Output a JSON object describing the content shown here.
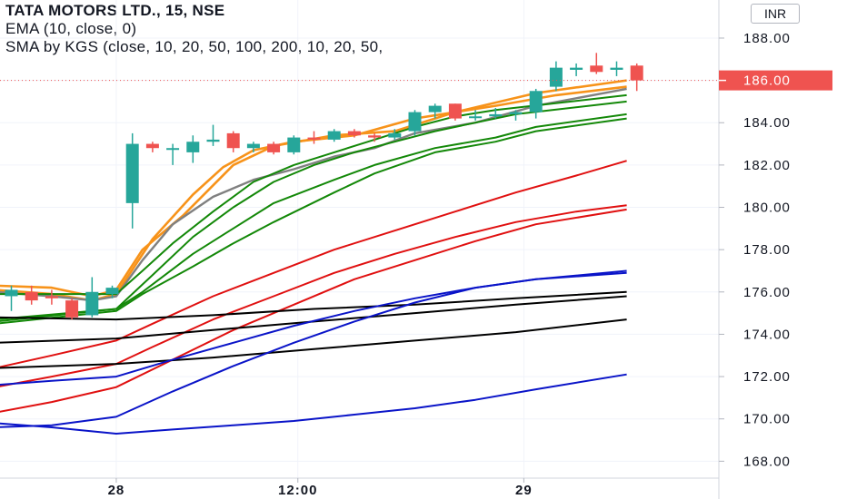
{
  "legend": {
    "title": "TATA MOTORS LTD., 15, NSE",
    "ema": "EMA (10, close, 0)",
    "sma": "SMA by KGS (close, 10, 20, 50, 100, 200, 10, 20, 50,"
  },
  "currency": "INR",
  "colors": {
    "up": "#26a69a",
    "down": "#ef5350",
    "ema": "#808080",
    "orange": "#f7931a",
    "green": "#138808",
    "red": "#e01010",
    "blue": "#0a14c8",
    "black": "#000000"
  },
  "chart_data": {
    "type": "candlestick",
    "ylim": [
      167.2,
      189.8
    ],
    "y_ticks": [
      168,
      170,
      172,
      174,
      176,
      178,
      180,
      182,
      184,
      186,
      188
    ],
    "y_tick_labels": [
      "168.00",
      "170.00",
      "172.00",
      "174.00",
      "176.00",
      "178.00",
      "180.00",
      "182.00",
      "184.00",
      "186.00",
      "188.00"
    ],
    "x_tick_labels": [
      {
        "label": "28",
        "bar": 5.2
      },
      {
        "label": "12:00",
        "bar": 14.2
      },
      {
        "label": "29",
        "bar": 25.4
      }
    ],
    "last_price": 186.0,
    "last_price_label": "186.00",
    "candles": [
      {
        "o": 175.8,
        "h": 176.3,
        "l": 175.1,
        "c": 176.1
      },
      {
        "o": 176.0,
        "h": 176.3,
        "l": 175.4,
        "c": 175.6
      },
      {
        "o": 175.8,
        "h": 176.1,
        "l": 175.4,
        "c": 175.7
      },
      {
        "o": 175.6,
        "h": 175.7,
        "l": 174.7,
        "c": 174.8
      },
      {
        "o": 174.9,
        "h": 176.7,
        "l": 174.8,
        "c": 176.0
      },
      {
        "o": 175.9,
        "h": 176.3,
        "l": 175.7,
        "c": 176.2
      },
      {
        "o": 180.2,
        "h": 183.5,
        "l": 179.0,
        "c": 183.0
      },
      {
        "o": 183.0,
        "h": 183.1,
        "l": 182.6,
        "c": 182.8
      },
      {
        "o": 182.8,
        "h": 183.0,
        "l": 182.0,
        "c": 182.8
      },
      {
        "o": 182.6,
        "h": 183.4,
        "l": 182.1,
        "c": 183.1
      },
      {
        "o": 183.1,
        "h": 183.9,
        "l": 182.9,
        "c": 183.2
      },
      {
        "o": 183.5,
        "h": 183.6,
        "l": 182.6,
        "c": 182.8
      },
      {
        "o": 182.8,
        "h": 183.1,
        "l": 182.6,
        "c": 183.0
      },
      {
        "o": 183.0,
        "h": 183.1,
        "l": 182.5,
        "c": 182.6
      },
      {
        "o": 182.6,
        "h": 183.4,
        "l": 182.5,
        "c": 183.3
      },
      {
        "o": 183.3,
        "h": 183.6,
        "l": 183.0,
        "c": 183.2
      },
      {
        "o": 183.2,
        "h": 183.7,
        "l": 183.1,
        "c": 183.6
      },
      {
        "o": 183.6,
        "h": 183.7,
        "l": 183.3,
        "c": 183.4
      },
      {
        "o": 183.4,
        "h": 183.5,
        "l": 183.1,
        "c": 183.3
      },
      {
        "o": 183.3,
        "h": 183.7,
        "l": 183.2,
        "c": 183.5
      },
      {
        "o": 183.6,
        "h": 184.6,
        "l": 183.4,
        "c": 184.5
      },
      {
        "o": 184.5,
        "h": 184.9,
        "l": 184.2,
        "c": 184.8
      },
      {
        "o": 184.9,
        "h": 184.9,
        "l": 184.1,
        "c": 184.2
      },
      {
        "o": 184.3,
        "h": 184.6,
        "l": 184.1,
        "c": 184.3
      },
      {
        "o": 184.3,
        "h": 184.7,
        "l": 184.2,
        "c": 184.4
      },
      {
        "o": 184.4,
        "h": 184.6,
        "l": 184.1,
        "c": 184.5
      },
      {
        "o": 184.5,
        "h": 185.6,
        "l": 184.2,
        "c": 185.5
      },
      {
        "o": 185.7,
        "h": 186.9,
        "l": 185.5,
        "c": 186.6
      },
      {
        "o": 186.5,
        "h": 186.8,
        "l": 186.2,
        "c": 186.6
      },
      {
        "o": 186.7,
        "h": 187.3,
        "l": 186.3,
        "c": 186.4
      },
      {
        "o": 186.5,
        "h": 186.9,
        "l": 186.2,
        "c": 186.6
      },
      {
        "o": 186.7,
        "h": 186.8,
        "l": 185.5,
        "c": 186.0
      }
    ],
    "series": [
      {
        "color": "orange",
        "points": [
          [
            -0.8,
            176.3
          ],
          [
            2,
            176.2
          ],
          [
            4,
            175.8
          ],
          [
            5.2,
            176.1
          ],
          [
            6.5,
            178.0
          ],
          [
            8.5,
            179.6
          ],
          [
            11,
            182.0
          ],
          [
            13,
            182.9
          ],
          [
            16,
            183.4
          ],
          [
            19,
            183.6
          ],
          [
            22,
            184.5
          ],
          [
            26,
            185.4
          ],
          [
            30.5,
            186.0
          ]
        ]
      },
      {
        "color": "orange",
        "points": [
          [
            -0.8,
            176.1
          ],
          [
            2,
            175.9
          ],
          [
            4,
            175.6
          ],
          [
            5.2,
            175.9
          ],
          [
            7,
            178.5
          ],
          [
            9,
            180.6
          ],
          [
            10.5,
            181.9
          ],
          [
            12,
            182.7
          ],
          [
            14,
            183.1
          ],
          [
            17,
            183.4
          ],
          [
            20,
            184.2
          ],
          [
            24,
            184.8
          ],
          [
            27,
            185.3
          ],
          [
            30.5,
            185.7
          ]
        ]
      },
      {
        "color": "ema",
        "points": [
          [
            -0.8,
            176.0
          ],
          [
            2,
            175.8
          ],
          [
            4,
            175.6
          ],
          [
            5.2,
            175.8
          ],
          [
            6.5,
            177.5
          ],
          [
            8,
            179.2
          ],
          [
            10,
            180.5
          ],
          [
            12,
            181.3
          ],
          [
            14,
            181.8
          ],
          [
            16,
            182.4
          ],
          [
            18,
            182.8
          ],
          [
            20,
            183.5
          ],
          [
            23,
            184.0
          ],
          [
            26,
            184.8
          ],
          [
            30.5,
            185.6
          ]
        ]
      },
      {
        "color": "green",
        "points": [
          [
            -0.8,
            175.9
          ],
          [
            5.2,
            175.9
          ],
          [
            6.5,
            177.0
          ],
          [
            8,
            178.3
          ],
          [
            10,
            179.8
          ],
          [
            12,
            181.2
          ],
          [
            14,
            182.0
          ],
          [
            16,
            182.6
          ],
          [
            18,
            183.2
          ],
          [
            20,
            183.8
          ],
          [
            22,
            184.3
          ],
          [
            24,
            184.6
          ],
          [
            30.5,
            185.3
          ]
        ]
      },
      {
        "color": "green",
        "points": [
          [
            -0.8,
            174.7
          ],
          [
            5.2,
            175.2
          ],
          [
            7,
            176.8
          ],
          [
            9,
            178.6
          ],
          [
            11,
            180.0
          ],
          [
            13,
            181.2
          ],
          [
            15,
            182.0
          ],
          [
            17,
            182.6
          ],
          [
            19,
            183.1
          ],
          [
            21,
            183.6
          ],
          [
            23,
            184.0
          ],
          [
            25,
            184.4
          ],
          [
            30.5,
            185.0
          ]
        ]
      },
      {
        "color": "green",
        "points": [
          [
            -0.8,
            174.6
          ],
          [
            5.2,
            175.2
          ],
          [
            6.5,
            176.0
          ],
          [
            9,
            177.8
          ],
          [
            11,
            179.0
          ],
          [
            13,
            180.2
          ],
          [
            16,
            181.3
          ],
          [
            18,
            182.0
          ],
          [
            21,
            182.8
          ],
          [
            24,
            183.3
          ],
          [
            26,
            183.8
          ],
          [
            30.5,
            184.4
          ]
        ]
      },
      {
        "color": "green",
        "points": [
          [
            -0.8,
            174.5
          ],
          [
            5.2,
            175.1
          ],
          [
            6.5,
            175.9
          ],
          [
            9,
            177.2
          ],
          [
            11,
            178.3
          ],
          [
            13,
            179.3
          ],
          [
            16,
            180.7
          ],
          [
            18,
            181.6
          ],
          [
            21,
            182.6
          ],
          [
            24,
            183.1
          ],
          [
            26,
            183.6
          ],
          [
            30.5,
            184.2
          ]
        ]
      },
      {
        "color": "red",
        "points": [
          [
            -0.8,
            172.4
          ],
          [
            2,
            173.0
          ],
          [
            5.2,
            173.7
          ],
          [
            7,
            174.5
          ],
          [
            10,
            175.8
          ],
          [
            13,
            176.9
          ],
          [
            16,
            178.0
          ],
          [
            19,
            178.9
          ],
          [
            22,
            179.8
          ],
          [
            25,
            180.7
          ],
          [
            28,
            181.5
          ],
          [
            30.5,
            182.2
          ]
        ]
      },
      {
        "color": "red",
        "points": [
          [
            -0.8,
            171.5
          ],
          [
            2,
            172.0
          ],
          [
            5.2,
            172.6
          ],
          [
            7,
            173.4
          ],
          [
            10,
            174.7
          ],
          [
            13,
            175.8
          ],
          [
            16,
            176.9
          ],
          [
            19,
            177.8
          ],
          [
            22,
            178.6
          ],
          [
            25,
            179.3
          ],
          [
            28,
            179.8
          ],
          [
            30.5,
            180.1
          ]
        ]
      },
      {
        "color": "red",
        "points": [
          [
            -0.8,
            170.3
          ],
          [
            2,
            170.8
          ],
          [
            5.2,
            171.5
          ],
          [
            8,
            172.8
          ],
          [
            11,
            174.2
          ],
          [
            14,
            175.4
          ],
          [
            17,
            176.6
          ],
          [
            20,
            177.5
          ],
          [
            23,
            178.4
          ],
          [
            26,
            179.2
          ],
          [
            30.5,
            179.9
          ]
        ]
      },
      {
        "color": "black",
        "points": [
          [
            -0.8,
            174.8
          ],
          [
            5.2,
            174.7
          ],
          [
            10,
            174.9
          ],
          [
            15,
            175.2
          ],
          [
            20,
            175.4
          ],
          [
            25,
            175.7
          ],
          [
            30.5,
            176.0
          ]
        ]
      },
      {
        "color": "black",
        "points": [
          [
            -0.8,
            173.6
          ],
          [
            5.2,
            173.8
          ],
          [
            10,
            174.2
          ],
          [
            15,
            174.6
          ],
          [
            20,
            175.0
          ],
          [
            25,
            175.4
          ],
          [
            30.5,
            175.8
          ]
        ]
      },
      {
        "color": "black",
        "points": [
          [
            -0.8,
            172.4
          ],
          [
            5.2,
            172.6
          ],
          [
            10,
            172.9
          ],
          [
            15,
            173.3
          ],
          [
            20,
            173.7
          ],
          [
            25,
            174.1
          ],
          [
            30.5,
            174.7
          ]
        ]
      },
      {
        "color": "blue",
        "points": [
          [
            -0.8,
            171.6
          ],
          [
            2,
            171.8
          ],
          [
            5.2,
            172.0
          ],
          [
            8,
            172.8
          ],
          [
            11,
            173.6
          ],
          [
            14,
            174.4
          ],
          [
            17,
            175.1
          ],
          [
            20,
            175.7
          ],
          [
            23,
            176.2
          ],
          [
            26,
            176.6
          ],
          [
            30.5,
            177.0
          ]
        ]
      },
      {
        "color": "blue",
        "points": [
          [
            -0.8,
            169.6
          ],
          [
            2,
            169.7
          ],
          [
            5.2,
            170.1
          ],
          [
            8,
            171.3
          ],
          [
            11,
            172.5
          ],
          [
            14,
            173.6
          ],
          [
            17,
            174.6
          ],
          [
            20,
            175.5
          ],
          [
            23,
            176.2
          ],
          [
            26,
            176.6
          ],
          [
            30.5,
            176.9
          ]
        ]
      },
      {
        "color": "blue",
        "points": [
          [
            -0.8,
            169.8
          ],
          [
            2,
            169.6
          ],
          [
            5.2,
            169.3
          ],
          [
            8,
            169.5
          ],
          [
            11,
            169.7
          ],
          [
            14,
            169.9
          ],
          [
            17,
            170.2
          ],
          [
            20,
            170.5
          ],
          [
            23,
            170.9
          ],
          [
            26,
            171.4
          ],
          [
            30.5,
            172.1
          ]
        ]
      }
    ]
  }
}
